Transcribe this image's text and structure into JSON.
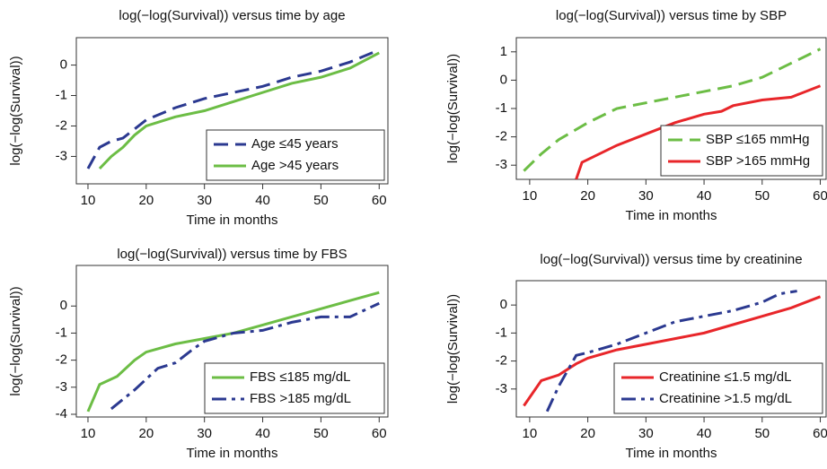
{
  "chart_data": [
    {
      "type": "line",
      "title": "log(−log(Survival)) versus time by age",
      "xlabel": "Time in months",
      "ylabel": "log(−log(Survival))",
      "xlim": [
        8,
        61.5
      ],
      "xticks": [
        10,
        20,
        30,
        40,
        50,
        60
      ],
      "ylim": [
        -3.9,
        0.9
      ],
      "yticks": [
        0,
        -1,
        -2,
        -3
      ],
      "legend": "lower right",
      "series": [
        {
          "name": "Age ≤45 years",
          "color": "#2b3990",
          "dash": "dashed",
          "x": [
            10,
            12,
            14,
            16,
            20,
            25,
            30,
            35,
            40,
            45,
            50,
            55,
            60
          ],
          "values": [
            -3.4,
            -2.7,
            -2.5,
            -2.4,
            -1.8,
            -1.4,
            -1.1,
            -0.9,
            -0.7,
            -0.4,
            -0.2,
            0.1,
            0.5
          ]
        },
        {
          "name": "Age >45 years",
          "color": "#6cbd45",
          "dash": "solid",
          "x": [
            12,
            14,
            16,
            18,
            20,
            25,
            30,
            35,
            40,
            45,
            50,
            55,
            60
          ],
          "values": [
            -3.4,
            -3.0,
            -2.7,
            -2.3,
            -2.0,
            -1.7,
            -1.5,
            -1.2,
            -0.9,
            -0.6,
            -0.4,
            -0.1,
            0.4
          ]
        }
      ]
    },
    {
      "type": "line",
      "title": "log(−log(Survival)) versus time by SBP",
      "xlabel": "Time in months",
      "ylabel": "log(−log(Survival))",
      "xlim": [
        7.7,
        61
      ],
      "xticks": [
        10,
        20,
        30,
        40,
        50,
        60
      ],
      "ylim": [
        -3.5,
        1.5
      ],
      "yticks": [
        1,
        0,
        -1,
        -2,
        -3
      ],
      "legend": "lower right",
      "series": [
        {
          "name": "SBP ≤165 mmHg",
          "color": "#6cbd45",
          "dash": "dashed",
          "x": [
            9,
            12,
            15,
            20,
            25,
            30,
            35,
            40,
            45,
            50,
            55,
            60
          ],
          "values": [
            -3.2,
            -2.6,
            -2.1,
            -1.5,
            -1.0,
            -0.8,
            -0.6,
            -0.4,
            -0.2,
            0.1,
            0.6,
            1.1
          ]
        },
        {
          "name": "SBP >165 mmHg",
          "color": "#e8262a",
          "dash": "solid",
          "x": [
            18,
            19,
            22,
            25,
            30,
            35,
            40,
            43,
            45,
            50,
            55,
            60
          ],
          "values": [
            -3.5,
            -2.9,
            -2.6,
            -2.3,
            -1.9,
            -1.5,
            -1.2,
            -1.1,
            -0.9,
            -0.7,
            -0.6,
            -0.2
          ]
        }
      ]
    },
    {
      "type": "line",
      "title": "log(−log(Survival)) versus time by FBS",
      "xlabel": "Time in months",
      "ylabel": "log(−log(Survival))",
      "xlim": [
        8,
        61.5
      ],
      "xticks": [
        10,
        20,
        30,
        40,
        50,
        60
      ],
      "ylim": [
        -4.1,
        1.5
      ],
      "yticks": [
        0,
        -1,
        -2,
        -3,
        -4
      ],
      "legend": "lower right",
      "series": [
        {
          "name": "FBS ≤185 mg/dL",
          "color": "#6cbd45",
          "dash": "solid",
          "x": [
            10,
            12,
            15,
            18,
            20,
            25,
            30,
            35,
            40,
            45,
            50,
            55,
            60
          ],
          "values": [
            -3.9,
            -2.9,
            -2.6,
            -2.0,
            -1.7,
            -1.4,
            -1.2,
            -1.0,
            -0.7,
            -0.4,
            -0.1,
            0.2,
            0.5
          ]
        },
        {
          "name": "FBS >185 mg/dL",
          "color": "#2b3990",
          "dash": "dashdot",
          "x": [
            14,
            18,
            20,
            22,
            25,
            28,
            30,
            35,
            40,
            45,
            50,
            55,
            58,
            60
          ],
          "values": [
            -3.8,
            -3.1,
            -2.7,
            -2.3,
            -2.1,
            -1.6,
            -1.3,
            -1.0,
            -0.9,
            -0.6,
            -0.4,
            -0.4,
            -0.1,
            0.1
          ]
        }
      ]
    },
    {
      "type": "line",
      "title": "log(−log(Survival)) versus time by creatinine",
      "xlabel": "Time in months",
      "ylabel": "log(−log(Survival))",
      "xlim": [
        7.7,
        61
      ],
      "xticks": [
        10,
        20,
        30,
        40,
        50,
        60
      ],
      "ylim": [
        -4.0,
        0.87
      ],
      "yticks": [
        0,
        -1,
        -2,
        -3
      ],
      "legend": "lower right",
      "series": [
        {
          "name": "Creatinine ≤1.5 mg/dL",
          "color": "#e8262a",
          "dash": "solid",
          "x": [
            9,
            12,
            15,
            18,
            20,
            25,
            30,
            35,
            40,
            45,
            50,
            55,
            60
          ],
          "values": [
            -3.6,
            -2.7,
            -2.5,
            -2.1,
            -1.9,
            -1.6,
            -1.4,
            -1.2,
            -1.0,
            -0.7,
            -0.4,
            -0.1,
            0.3
          ]
        },
        {
          "name": "Creatinine >1.5 mg/dL",
          "color": "#2b3990",
          "dash": "dashdot",
          "x": [
            13,
            15,
            18,
            20,
            25,
            30,
            35,
            40,
            45,
            50,
            53,
            56
          ],
          "values": [
            -3.8,
            -2.9,
            -1.8,
            -1.7,
            -1.4,
            -1.0,
            -0.6,
            -0.4,
            -0.2,
            0.1,
            0.4,
            0.5
          ]
        }
      ]
    }
  ]
}
